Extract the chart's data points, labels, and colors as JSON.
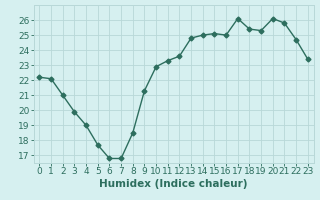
{
  "x": [
    0,
    1,
    2,
    3,
    4,
    5,
    6,
    7,
    8,
    9,
    10,
    11,
    12,
    13,
    14,
    15,
    16,
    17,
    18,
    19,
    20,
    21,
    22,
    23
  ],
  "y": [
    22.2,
    22.1,
    21.0,
    19.9,
    19.0,
    17.7,
    16.8,
    16.8,
    18.5,
    21.3,
    22.9,
    23.3,
    23.6,
    24.8,
    25.0,
    25.1,
    25.0,
    26.1,
    25.4,
    25.3,
    26.1,
    25.8,
    24.7,
    23.4
  ],
  "xlabel": "Humidex (Indice chaleur)",
  "xlim": [
    -0.5,
    23.5
  ],
  "ylim": [
    16.5,
    27
  ],
  "yticks": [
    17,
    18,
    19,
    20,
    21,
    22,
    23,
    24,
    25,
    26
  ],
  "xticks": [
    0,
    1,
    2,
    3,
    4,
    5,
    6,
    7,
    8,
    9,
    10,
    11,
    12,
    13,
    14,
    15,
    16,
    17,
    18,
    19,
    20,
    21,
    22,
    23
  ],
  "line_color": "#2d6e5e",
  "marker": "D",
  "marker_size": 2.5,
  "bg_color": "#d6f0f0",
  "grid_color": "#b8d8d8",
  "tick_label_fontsize": 6.5,
  "xlabel_fontsize": 7.5,
  "line_width": 1.0
}
